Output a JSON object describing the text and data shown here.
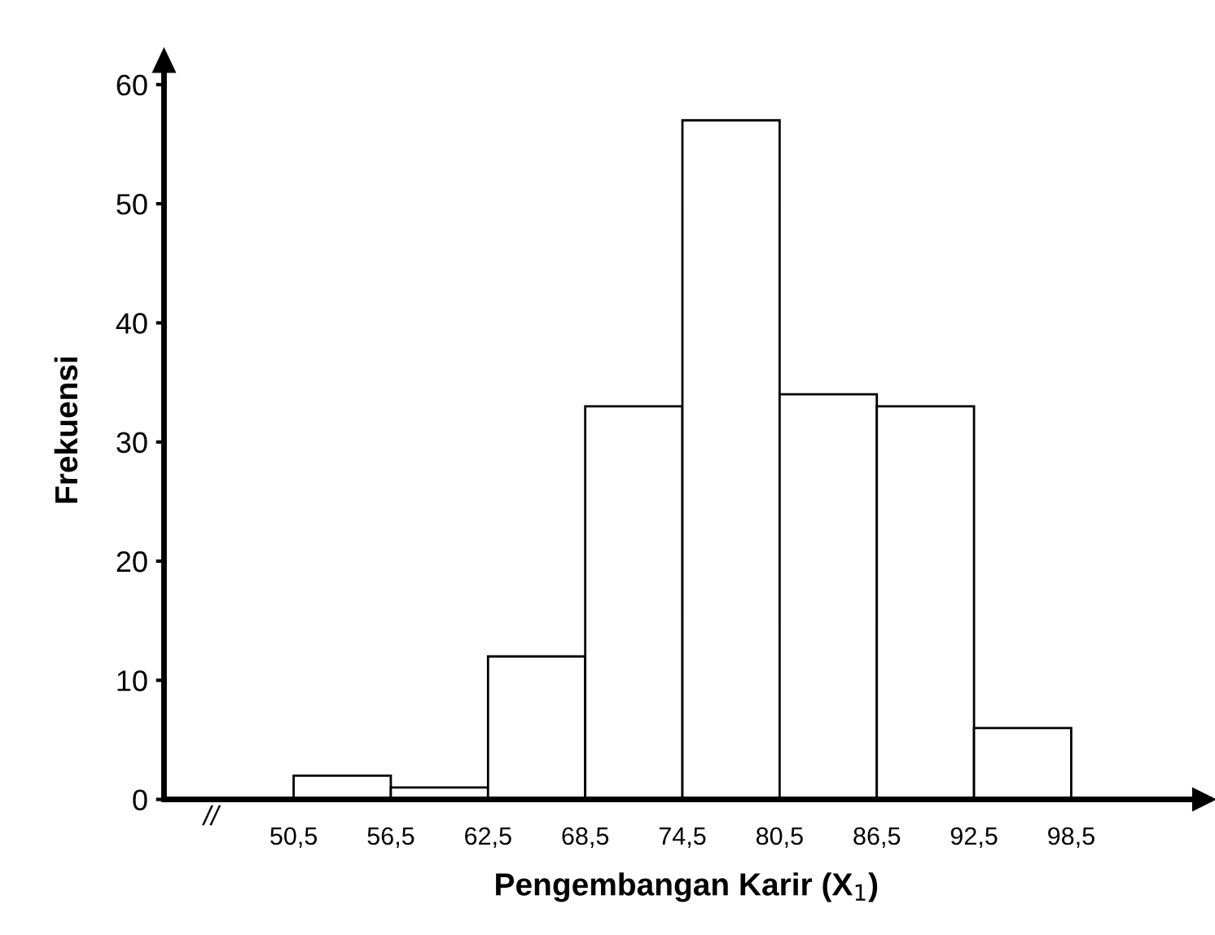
{
  "chart_data": {
    "type": "histogram",
    "xlabel": "Pengembangan Karir (X$_{1}$)",
    "ylabel": "Frekuensi",
    "bins": [
      50.5,
      56.5,
      62.5,
      68.5,
      74.5,
      80.5,
      86.5,
      92.5,
      98.5
    ],
    "values": [
      2,
      1,
      12,
      33,
      57,
      34,
      33,
      6
    ],
    "color": "#ffffff",
    "xlim": [
      42.5,
      107
    ],
    "ylim": [
      0,
      62
    ],
    "xticks": [
      {
        "value": 50.5,
        "label": "50,5"
      },
      {
        "value": 56.5,
        "label": "56,5"
      },
      {
        "value": 62.5,
        "label": "62,5"
      },
      {
        "value": 68.5,
        "label": "68,5"
      },
      {
        "value": 74.5,
        "label": "74,5"
      },
      {
        "value": 80.5,
        "label": "80,5"
      },
      {
        "value": 86.5,
        "label": "86,5"
      },
      {
        "value": 92.5,
        "label": "92,5"
      },
      {
        "value": 98.5,
        "label": "98,5"
      }
    ],
    "yticks": [
      0,
      10,
      20,
      30,
      40,
      50,
      60
    ],
    "annotations": [
      "//"
    ],
    "grid": false
  }
}
